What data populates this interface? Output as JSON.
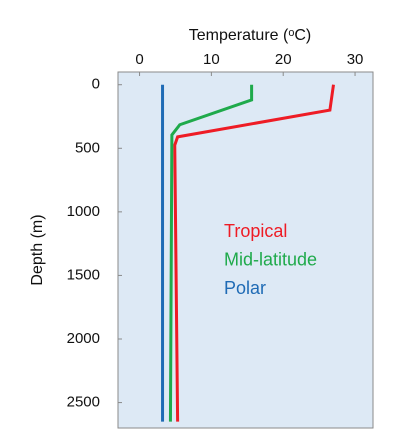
{
  "chart_data": {
    "type": "line",
    "xlabel": "Temperature (ᵒC)",
    "ylabel": "Depth (m)",
    "xlim": [
      -3,
      32.5
    ],
    "xticks": [
      0,
      10,
      20,
      30
    ],
    "ylim": [
      2700,
      -100
    ],
    "yticks": [
      0,
      500,
      1000,
      1500,
      2000,
      2500
    ],
    "legend": "center-right",
    "series": [
      {
        "name": "Tropical",
        "color": "#ee1c25",
        "values": [
          27,
          26.5,
          5.3,
          4.9,
          5.3
        ],
        "depths": [
          0,
          200,
          410,
          475,
          2650
        ]
      },
      {
        "name": "Mid-latitude",
        "color": "#1faa4b",
        "values": [
          15.6,
          15.6,
          5.6,
          4.5,
          4.3
        ],
        "depths": [
          0,
          120,
          315,
          395,
          2650
        ]
      },
      {
        "name": "Polar",
        "color": "#1f6bb5",
        "values": [
          3.2,
          3.2
        ],
        "depths": [
          0,
          2650
        ]
      }
    ]
  }
}
